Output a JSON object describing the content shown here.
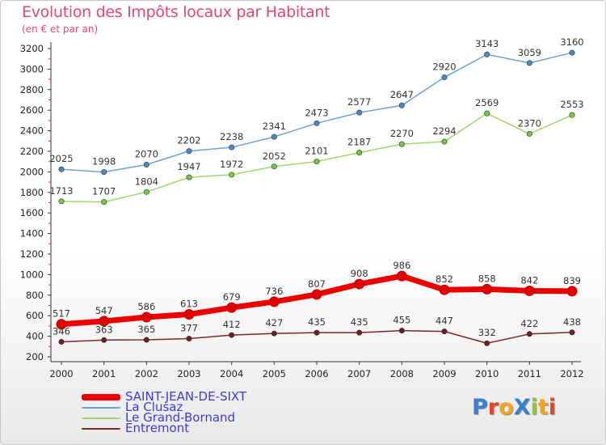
{
  "title": "Evolution des Impôts locaux par Habitant",
  "subtitle": "(en € et par an)",
  "logo": {
    "text": "ProXiti",
    "letters": [
      {
        "ch": "P",
        "color": "#3b7fd1"
      },
      {
        "ch": "r",
        "color": "#e8452c"
      },
      {
        "ch": "o",
        "color": "#f2a41c"
      },
      {
        "ch": "X",
        "color": "#3b7fd1"
      },
      {
        "ch": "i",
        "color": "#8cc63f"
      },
      {
        "ch": "t",
        "color": "#f2a41c"
      },
      {
        "ch": "i",
        "color": "#e8452c"
      }
    ]
  },
  "chart_data": {
    "type": "line",
    "title": "Evolution des Impôts locaux par Habitant",
    "subtitle": "(en € et par an)",
    "x": [
      "2000",
      "2001",
      "2002",
      "2003",
      "2004",
      "2005",
      "2006",
      "2007",
      "2008",
      "2009",
      "2010",
      "2011",
      "2012"
    ],
    "ylim": [
      200,
      3200
    ],
    "yticks": [
      200,
      400,
      600,
      800,
      1000,
      1200,
      1400,
      1600,
      1800,
      2000,
      2200,
      2400,
      2600,
      2800,
      3000,
      3200
    ],
    "grid": false,
    "legend": "bottom-left",
    "series": [
      {
        "name": "SAINT-JEAN-DE-SIXT",
        "color": "#ee0000",
        "marker": "#e00000",
        "values": [
          517,
          547,
          586,
          613,
          679,
          736,
          807,
          908,
          986,
          852,
          858,
          842,
          839
        ]
      },
      {
        "name": "La Clusaz",
        "color": "#6aa3d6",
        "marker": "#4a88c8",
        "values": [
          2025,
          1998,
          2070,
          2202,
          2238,
          2341,
          2473,
          2577,
          2647,
          2920,
          3143,
          3059,
          3160
        ]
      },
      {
        "name": "Le Grand-Bornand",
        "color": "#9fd86a",
        "marker": "#78c840",
        "values": [
          1713,
          1707,
          1804,
          1947,
          1972,
          2052,
          2101,
          2187,
          2270,
          2294,
          2569,
          2370,
          2553
        ]
      },
      {
        "name": "Entremont",
        "color": "#7a2a2a",
        "marker": "#6b1f1f",
        "values": [
          346,
          363,
          365,
          377,
          412,
          427,
          435,
          435,
          455,
          447,
          332,
          422,
          438
        ]
      }
    ]
  }
}
